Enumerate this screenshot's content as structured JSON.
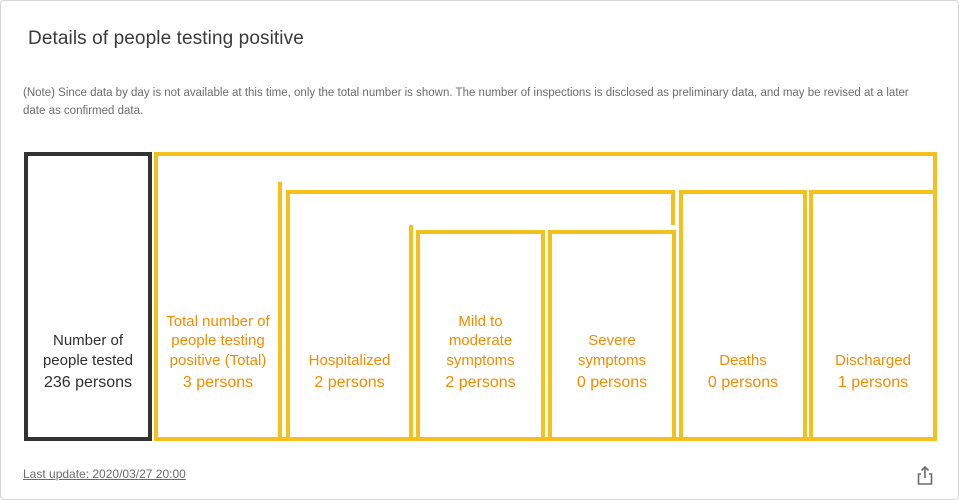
{
  "title": "Details of people testing positive",
  "note": "(Note) Since data by day is not available at this time, only the total number is shown. The number of inspections is disclosed as preliminary data, and may be revised at a later date as confirmed data.",
  "boxes": {
    "tested": {
      "label": "Number of people tested",
      "count": "236 persons"
    },
    "total_positive": {
      "label": "Total number of people testing positive (Total)",
      "count": "3 persons"
    },
    "hospitalized": {
      "label": "Hospitalized",
      "count": "2 persons"
    },
    "mild": {
      "label": "Mild to moderate symptoms",
      "count": "2 persons"
    },
    "severe": {
      "label": "Severe symptoms",
      "count": "0 persons"
    },
    "deaths": {
      "label": "Deaths",
      "count": "0 persons"
    },
    "discharged": {
      "label": "Discharged",
      "count": "1 persons"
    }
  },
  "last_update": "Last update: 2020/03/27 20:00",
  "colors": {
    "accent": "#f5c01e",
    "text_accent": "#f08c00",
    "dark_border": "#333333"
  },
  "icons": {
    "share": "share-icon"
  }
}
